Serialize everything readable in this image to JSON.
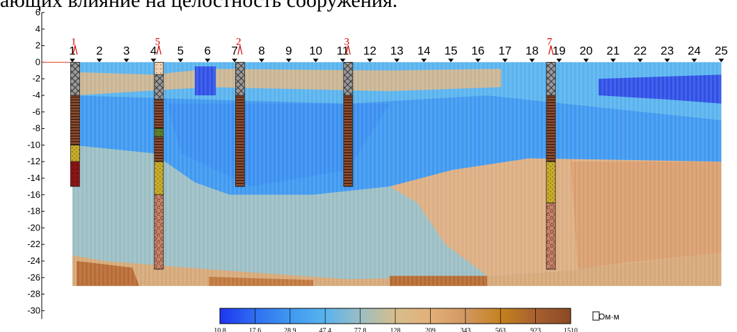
{
  "caption": "ающих влияние на целостность сооружения.",
  "chart_data": {
    "type": "heatmap",
    "y_ticks": [
      6,
      4,
      2,
      0,
      -2,
      -4,
      -6,
      -8,
      -10,
      -12,
      -14,
      -16,
      -18,
      -20,
      -22,
      -24,
      -26,
      -28,
      -30
    ],
    "ylim": [
      -30,
      6
    ],
    "stations": [
      1,
      2,
      3,
      4,
      5,
      6,
      7,
      8,
      9,
      10,
      11,
      12,
      13,
      14,
      15,
      16,
      17,
      18,
      19,
      20,
      21,
      22,
      23,
      24,
      25
    ],
    "section_depth": [
      0,
      -27
    ],
    "boreholes": [
      {
        "label": "1",
        "station": 1.1,
        "depth": -15,
        "layers": [
          {
            "from": 0,
            "to": -4,
            "type": "fill"
          },
          {
            "from": -4,
            "to": -10,
            "type": "loam"
          },
          {
            "from": -10,
            "to": -12,
            "type": "sand"
          },
          {
            "from": -12,
            "to": -15,
            "type": "clay"
          }
        ]
      },
      {
        "label": "5",
        "station": 4.2,
        "depth": -25,
        "layers": [
          {
            "from": 0,
            "to": -1.5,
            "type": "soil"
          },
          {
            "from": -1.5,
            "to": -4.5,
            "type": "fill"
          },
          {
            "from": -4.5,
            "to": -8,
            "type": "loam"
          },
          {
            "from": -8,
            "to": -9,
            "type": "green"
          },
          {
            "from": -9,
            "to": -12,
            "type": "loam"
          },
          {
            "from": -12,
            "to": -16,
            "type": "sand"
          },
          {
            "from": -16,
            "to": -25,
            "type": "gravel"
          }
        ]
      },
      {
        "label": "2",
        "station": 7.2,
        "depth": -15,
        "layers": [
          {
            "from": 0,
            "to": -4,
            "type": "fill"
          },
          {
            "from": -4,
            "to": -15,
            "type": "loam"
          }
        ]
      },
      {
        "label": "3",
        "station": 11.2,
        "depth": -15,
        "layers": [
          {
            "from": 0,
            "to": -4,
            "type": "fill"
          },
          {
            "from": -4,
            "to": -15,
            "type": "loam"
          }
        ]
      },
      {
        "label": "7",
        "station": 18.7,
        "depth": -25,
        "layers": [
          {
            "from": 0,
            "to": -4,
            "type": "fill"
          },
          {
            "from": -4,
            "to": -12,
            "type": "loam"
          },
          {
            "from": -12,
            "to": -17,
            "type": "sand"
          },
          {
            "from": -17,
            "to": -25,
            "type": "gravel"
          }
        ]
      }
    ],
    "colorbar": {
      "labels": [
        "10.8",
        "17.6",
        "28.9",
        "47.4",
        "77.8",
        "128",
        "209",
        "343",
        "563",
        "923",
        "1510"
      ],
      "colors": [
        "#1e35f0",
        "#2f6ef0",
        "#3f99f0",
        "#59b3ee",
        "#9bbec4",
        "#d6be8c",
        "#e3b078",
        "#d29762",
        "#c5821e",
        "#a76030",
        "#8a4a24"
      ],
      "unit": "Ом·м"
    },
    "legend_colors": {
      "fill": "#9a9a9a",
      "loam": "#8b4a2c",
      "sand": "#c9ad2a",
      "clay": "#8b1414",
      "soil": "#efcfae",
      "green": "#5d7e2a",
      "gravel": "#c8856a"
    }
  }
}
